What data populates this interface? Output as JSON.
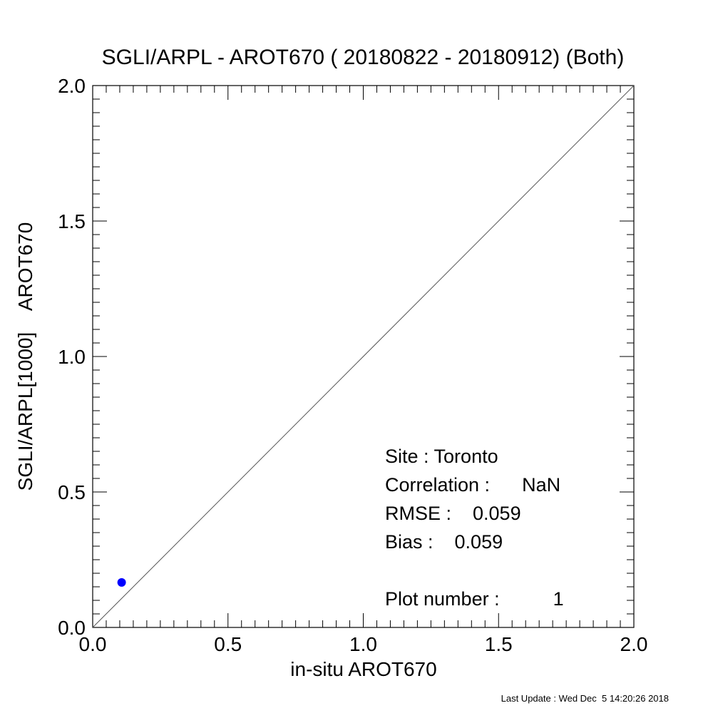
{
  "chart_data": {
    "type": "scatter",
    "title": "SGLI/ARPL - AROT670 ( 20180822 - 20180912) (Both)",
    "xlabel": "in-situ AROT670",
    "ylabel": "SGLI/ARPL[1000]    AROT670",
    "xlim": [
      0.0,
      2.0
    ],
    "ylim": [
      0.0,
      2.0
    ],
    "x_ticks": [
      0.0,
      0.5,
      1.0,
      1.5,
      2.0
    ],
    "y_ticks": [
      0.0,
      0.5,
      1.0,
      1.5,
      2.0
    ],
    "x_tick_labels": [
      "0.0",
      "0.5",
      "1.0",
      "1.5",
      "2.0"
    ],
    "y_tick_labels": [
      "0.0",
      "0.5",
      "1.0",
      "1.5",
      "2.0"
    ],
    "minor_tick_step": 0.05,
    "grid": false,
    "reference_line": {
      "from": [
        0.0,
        0.0
      ],
      "to": [
        2.0,
        2.0
      ],
      "color": "#555555"
    },
    "points": [
      {
        "x": 0.107,
        "y": 0.166,
        "color": "#0000ff"
      }
    ],
    "stats": {
      "site": "Site : Toronto",
      "correlation": "Correlation :      NaN",
      "rmse": "RMSE :    0.059",
      "bias": "Bias :    0.059",
      "plot_number": "Plot number :          1"
    }
  },
  "footer": {
    "last_update": "Last Update : Wed Dec  5 14:20:26 2018"
  }
}
